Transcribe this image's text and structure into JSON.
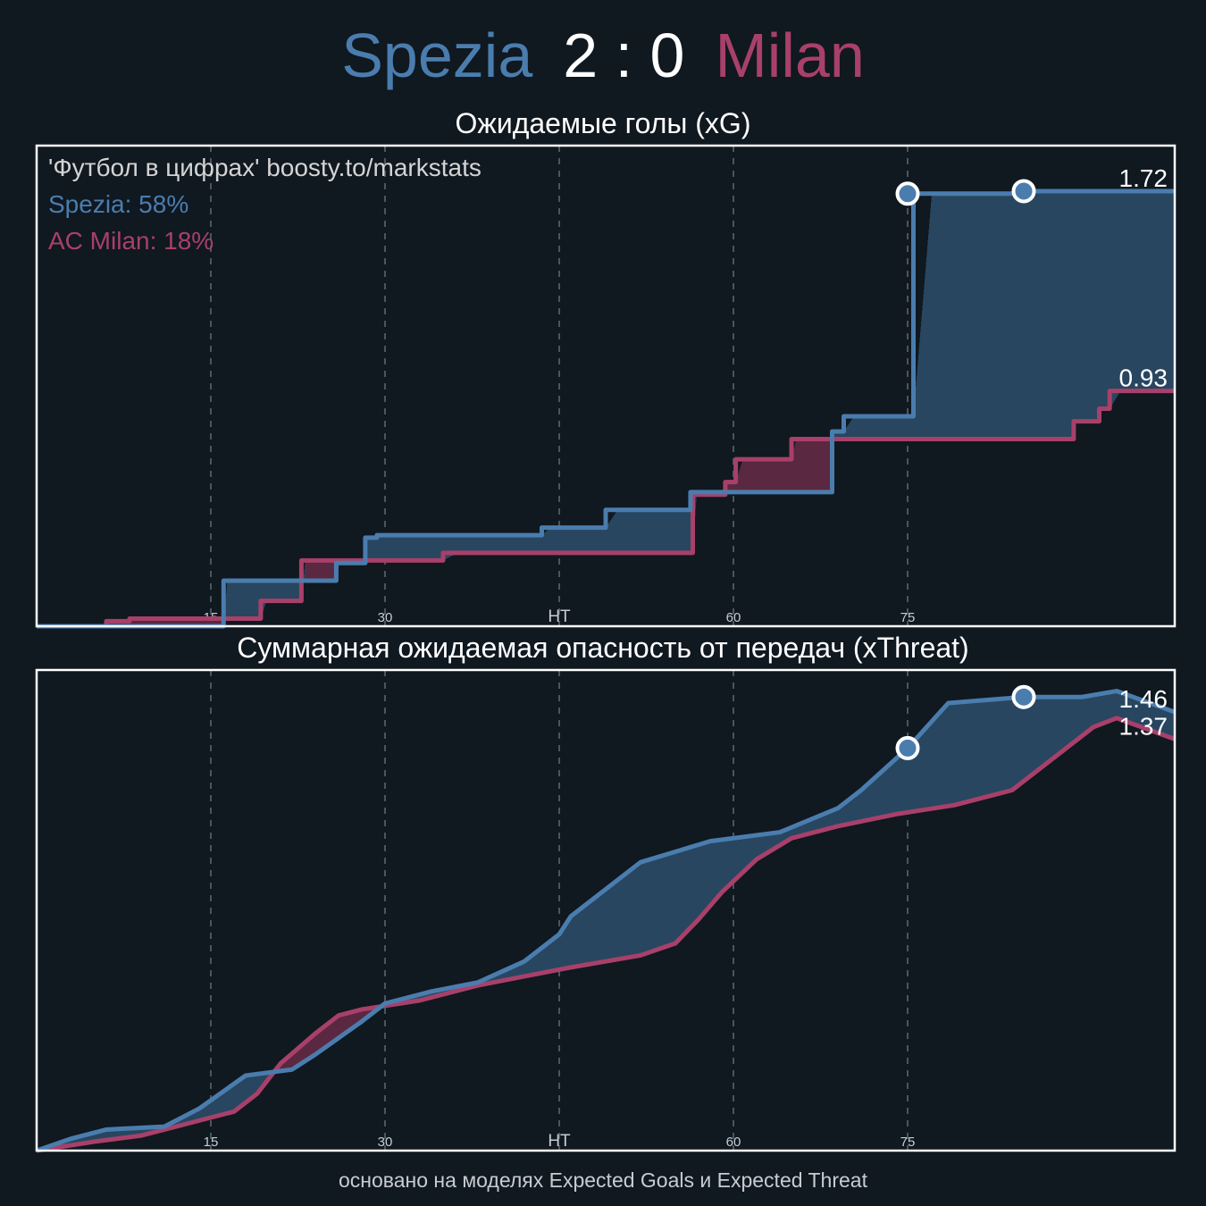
{
  "header": {
    "home_team": "Spezia",
    "score": "2 : 0",
    "away_team": "Milan"
  },
  "colors": {
    "background": "#101820",
    "home": "#4a7dae",
    "away": "#a8406a",
    "home_fill": "#284660",
    "away_fill": "#5a2840"
  },
  "annotations": {
    "credit": "'Футбол в цифрах' boosty.to/markstats",
    "home_win": "Spezia: 58%",
    "away_win": "AC Milan: 18%"
  },
  "footer": "основано на моделях Expected Goals и Expected Threat",
  "chart_data": [
    {
      "type": "line",
      "title": "Ожидаемые голы (xG)",
      "step": true,
      "xlim": [
        0,
        98
      ],
      "ylim": [
        0,
        1.9
      ],
      "x_ticks": [
        {
          "value": 15,
          "label": "15"
        },
        {
          "value": 30,
          "label": "30"
        },
        {
          "value": 45,
          "label": "HT"
        },
        {
          "value": 60,
          "label": "60"
        },
        {
          "value": 75,
          "label": "75"
        }
      ],
      "grid": "x-dashed",
      "end_labels": [
        {
          "text": "1.72",
          "value": 1.72,
          "series": "Spezia"
        },
        {
          "text": "0.93",
          "value": 0.93,
          "series": "AC Milan"
        }
      ],
      "series": [
        {
          "name": "Spezia",
          "color": "#4a7dae",
          "points": [
            [
              0,
              0
            ],
            [
              14.8,
              0
            ],
            [
              16.1,
              0.18
            ],
            [
              24.8,
              0.18
            ],
            [
              25.8,
              0.25
            ],
            [
              27.5,
              0.25
            ],
            [
              28.3,
              0.35
            ],
            [
              29.3,
              0.36
            ],
            [
              42.5,
              0.36
            ],
            [
              43.5,
              0.39
            ],
            [
              48,
              0.39
            ],
            [
              49,
              0.46
            ],
            [
              55.2,
              0.46
            ],
            [
              56.3,
              0.53
            ],
            [
              67.5,
              0.53
            ],
            [
              68.5,
              0.77
            ],
            [
              69.5,
              0.83
            ],
            [
              74.8,
              0.83
            ],
            [
              75.5,
              1.71
            ],
            [
              85,
              1.72
            ],
            [
              98,
              1.72
            ]
          ]
        },
        {
          "name": "AC Milan",
          "color": "#a8406a",
          "points": [
            [
              0,
              0
            ],
            [
              5,
              0
            ],
            [
              6,
              0.02
            ],
            [
              8,
              0.03
            ],
            [
              18,
              0.03
            ],
            [
              19.3,
              0.1
            ],
            [
              22.3,
              0.1
            ],
            [
              22.8,
              0.26
            ],
            [
              34,
              0.26
            ],
            [
              35,
              0.29
            ],
            [
              55.5,
              0.29
            ],
            [
              56.5,
              0.52
            ],
            [
              58.5,
              0.52
            ],
            [
              59.3,
              0.57
            ],
            [
              60.2,
              0.66
            ],
            [
              63.8,
              0.66
            ],
            [
              65,
              0.74
            ],
            [
              88.5,
              0.74
            ],
            [
              89.3,
              0.81
            ],
            [
              90.1,
              0.81
            ],
            [
              91.5,
              0.86
            ],
            [
              92.4,
              0.93
            ],
            [
              98,
              0.93
            ]
          ]
        }
      ],
      "goals": [
        {
          "series": "Spezia",
          "minute": 75,
          "xg": 1.71
        },
        {
          "series": "Spezia",
          "minute": 85,
          "xg": 1.72
        }
      ]
    },
    {
      "type": "line",
      "title": "Суммарная ожидаемая опасность от передач (xThreat)",
      "step": false,
      "xlim": [
        0,
        98
      ],
      "ylim": [
        0,
        1.6
      ],
      "x_ticks": [
        {
          "value": 15,
          "label": "15"
        },
        {
          "value": 30,
          "label": "30"
        },
        {
          "value": 45,
          "label": "HT"
        },
        {
          "value": 60,
          "label": "60"
        },
        {
          "value": 75,
          "label": "75"
        }
      ],
      "grid": "x-dashed",
      "end_labels": [
        {
          "text": "1.46",
          "value": 1.46,
          "series": "Spezia"
        },
        {
          "text": "1.37",
          "value": 1.37,
          "series": "AC Milan"
        }
      ],
      "series": [
        {
          "name": "Spezia",
          "color": "#4a7dae",
          "points": [
            [
              0,
              0
            ],
            [
              3,
              0.04
            ],
            [
              6,
              0.07
            ],
            [
              11,
              0.08
            ],
            [
              14,
              0.14
            ],
            [
              18,
              0.25
            ],
            [
              22,
              0.27
            ],
            [
              24,
              0.32
            ],
            [
              28,
              0.43
            ],
            [
              30,
              0.49
            ],
            [
              34,
              0.53
            ],
            [
              38,
              0.56
            ],
            [
              42,
              0.63
            ],
            [
              45,
              0.72
            ],
            [
              46,
              0.78
            ],
            [
              52,
              0.96
            ],
            [
              58,
              1.03
            ],
            [
              64,
              1.06
            ],
            [
              69,
              1.14
            ],
            [
              71,
              1.2
            ],
            [
              75,
              1.34
            ],
            [
              78.5,
              1.49
            ],
            [
              85,
              1.51
            ],
            [
              90,
              1.51
            ],
            [
              93,
              1.53
            ],
            [
              98,
              1.46
            ]
          ]
        },
        {
          "name": "AC Milan",
          "color": "#a8406a",
          "points": [
            [
              0,
              0
            ],
            [
              5,
              0.03
            ],
            [
              9,
              0.05
            ],
            [
              13,
              0.09
            ],
            [
              17,
              0.13
            ],
            [
              19,
              0.19
            ],
            [
              21,
              0.29
            ],
            [
              24,
              0.39
            ],
            [
              26,
              0.45
            ],
            [
              28,
              0.47
            ],
            [
              33,
              0.5
            ],
            [
              38,
              0.55
            ],
            [
              42,
              0.58
            ],
            [
              46,
              0.61
            ],
            [
              49,
              0.63
            ],
            [
              52,
              0.65
            ],
            [
              55,
              0.69
            ],
            [
              57,
              0.77
            ],
            [
              59,
              0.86
            ],
            [
              62,
              0.97
            ],
            [
              65,
              1.04
            ],
            [
              69,
              1.08
            ],
            [
              74,
              1.12
            ],
            [
              79,
              1.15
            ],
            [
              84,
              1.2
            ],
            [
              85,
              1.23
            ],
            [
              88,
              1.32
            ],
            [
              91,
              1.41
            ],
            [
              93,
              1.44
            ],
            [
              98,
              1.37
            ]
          ]
        }
      ],
      "goals": [
        {
          "series": "Spezia",
          "minute": 75,
          "xt": 1.34
        },
        {
          "series": "Spezia",
          "minute": 85,
          "xt": 1.51
        }
      ]
    }
  ]
}
